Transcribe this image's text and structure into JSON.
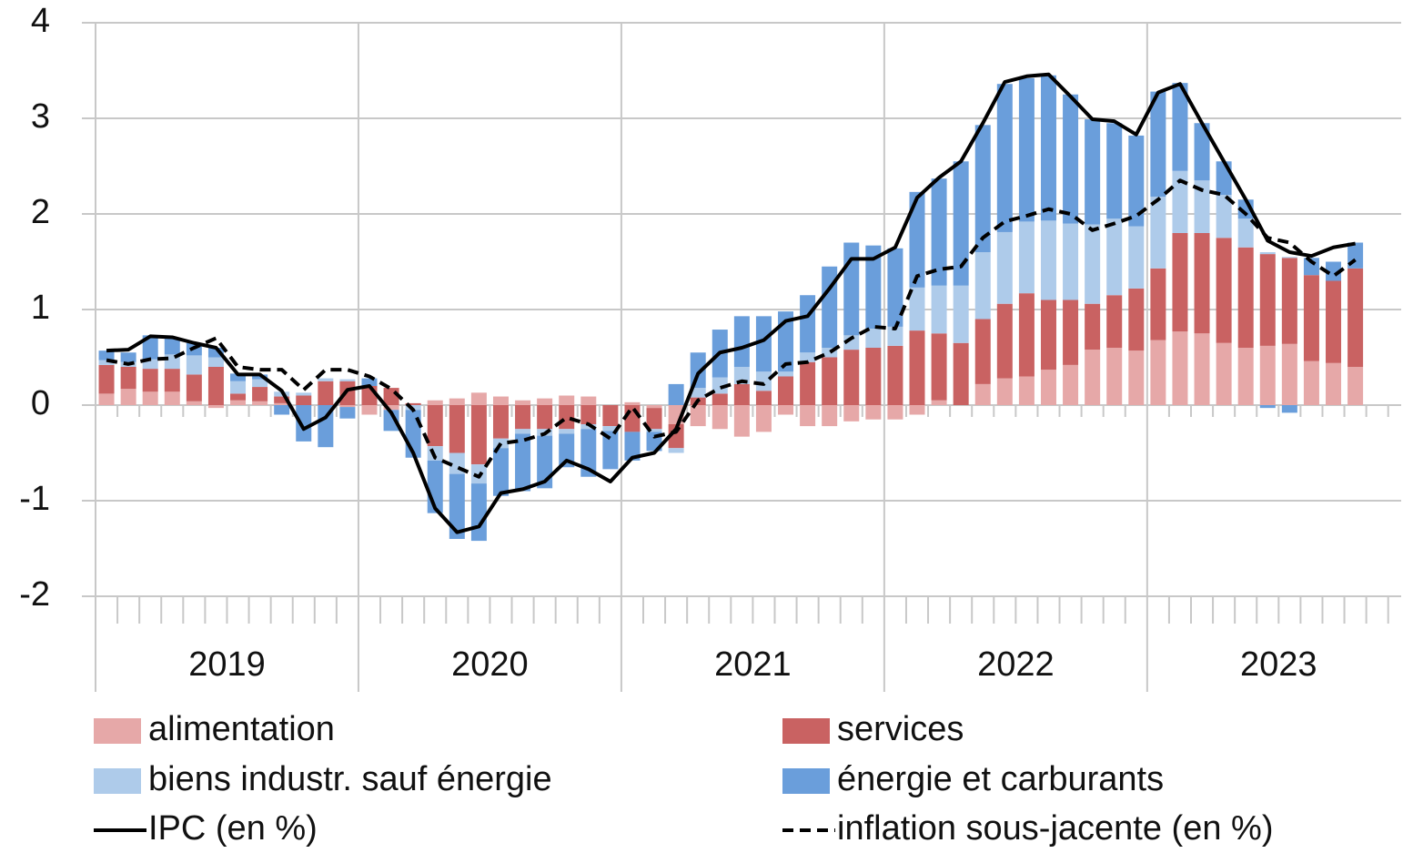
{
  "chart_data": {
    "type": "bar",
    "categories": [
      null,
      null,
      null,
      null,
      null,
      null,
      null,
      null,
      null,
      null,
      null,
      null,
      null,
      null,
      null,
      null,
      null,
      null,
      null,
      null,
      null,
      null,
      null,
      null,
      null,
      null,
      null,
      null,
      null,
      null,
      null,
      null,
      null,
      null,
      null,
      null,
      null,
      null,
      null,
      null,
      null,
      null,
      null,
      null,
      null,
      null,
      null,
      null,
      null,
      null,
      null,
      null,
      null,
      null,
      null,
      null,
      null,
      null
    ],
    "years": [
      "2019",
      "2020",
      "2021",
      "2022",
      "2023"
    ],
    "ylim": [
      -2,
      4
    ],
    "yticks": [
      -2,
      -1,
      0,
      1,
      2,
      3,
      4
    ],
    "grid": true,
    "series": [
      {
        "name": "alimentation",
        "color": "#e6a8a8",
        "kind": "bar",
        "values": [
          0.12,
          0.17,
          0.14,
          0.14,
          0.04,
          -0.03,
          0.05,
          0.04,
          0.02,
          0.0,
          0.0,
          -0.02,
          -0.1,
          -0.05,
          0.0,
          0.05,
          0.07,
          0.13,
          0.09,
          0.05,
          0.07,
          0.1,
          0.09,
          0.0,
          0.03,
          -0.03,
          -0.2,
          -0.22,
          -0.25,
          -0.33,
          -0.28,
          -0.1,
          -0.22,
          -0.22,
          -0.17,
          -0.15,
          -0.15,
          -0.1,
          0.05,
          0.0,
          0.22,
          0.28,
          0.3,
          0.37,
          0.42,
          0.58,
          0.6,
          0.57,
          0.68,
          0.77,
          0.75,
          0.65,
          0.6,
          0.62,
          0.64,
          0.46,
          0.44,
          0.4
        ]
      },
      {
        "name": "services",
        "color": "#c96262",
        "kind": "bar",
        "values": [
          0.3,
          0.23,
          0.24,
          0.24,
          0.28,
          0.4,
          0.07,
          0.15,
          0.07,
          0.1,
          0.25,
          0.25,
          0.2,
          0.18,
          0.02,
          -0.43,
          -0.5,
          -0.62,
          -0.35,
          -0.25,
          -0.25,
          -0.25,
          -0.2,
          -0.22,
          -0.28,
          -0.22,
          -0.25,
          0.08,
          0.12,
          0.22,
          0.15,
          0.3,
          0.45,
          0.5,
          0.58,
          0.6,
          0.62,
          0.78,
          0.7,
          0.65,
          0.68,
          0.78,
          0.87,
          0.73,
          0.68,
          0.48,
          0.55,
          0.65,
          0.75,
          1.03,
          1.05,
          1.1,
          1.05,
          0.96,
          0.9,
          0.9,
          0.86,
          1.03
        ]
      },
      {
        "name": "biens industr. sauf énergie",
        "color": "#aecbea",
        "kind": "bar",
        "values": [
          0.05,
          0.05,
          0.1,
          0.15,
          0.2,
          0.1,
          0.13,
          0.08,
          0.05,
          0.03,
          0.03,
          0.02,
          0.0,
          0.0,
          -0.05,
          -0.15,
          -0.22,
          -0.2,
          -0.1,
          -0.05,
          -0.07,
          -0.05,
          -0.05,
          -0.05,
          0.0,
          -0.03,
          -0.05,
          0.1,
          0.17,
          0.18,
          0.2,
          0.05,
          0.1,
          0.1,
          0.15,
          0.2,
          0.2,
          0.45,
          0.5,
          0.6,
          0.7,
          0.75,
          0.75,
          0.83,
          0.8,
          0.83,
          0.8,
          0.65,
          0.75,
          0.65,
          0.55,
          0.45,
          0.3,
          0.02,
          0.01,
          0.0,
          0.0,
          0.0
        ]
      },
      {
        "name": "énergie et carburants",
        "color": "#6a9edb",
        "kind": "bar",
        "values": [
          0.1,
          0.1,
          0.25,
          0.17,
          0.13,
          0.1,
          0.08,
          0.05,
          -0.1,
          -0.38,
          -0.44,
          -0.12,
          0.08,
          -0.22,
          -0.5,
          -0.55,
          -0.68,
          -0.6,
          -0.5,
          -0.6,
          -0.55,
          -0.35,
          -0.5,
          -0.4,
          -0.3,
          -0.2,
          0.22,
          0.37,
          0.5,
          0.53,
          0.58,
          0.63,
          0.6,
          0.85,
          0.97,
          0.87,
          0.82,
          1.0,
          1.12,
          1.3,
          1.33,
          1.55,
          1.5,
          1.52,
          1.35,
          1.1,
          1.0,
          0.95,
          1.1,
          0.92,
          0.6,
          0.35,
          0.2,
          -0.03,
          -0.08,
          0.18,
          0.2,
          0.27
        ]
      },
      {
        "name": "IPC (en %)",
        "color": "#000000",
        "kind": "line",
        "dashed": false,
        "values": [
          0.57,
          0.58,
          0.72,
          0.71,
          0.65,
          0.6,
          0.32,
          0.32,
          0.15,
          -0.25,
          -0.13,
          0.16,
          0.2,
          -0.08,
          -0.5,
          -1.08,
          -1.33,
          -1.27,
          -0.92,
          -0.88,
          -0.8,
          -0.58,
          -0.67,
          -0.8,
          -0.55,
          -0.5,
          -0.25,
          0.33,
          0.55,
          0.6,
          0.68,
          0.88,
          0.93,
          1.22,
          1.53,
          1.53,
          1.65,
          2.17,
          2.38,
          2.55,
          2.95,
          3.38,
          3.44,
          3.46,
          3.23,
          2.99,
          2.97,
          2.83,
          3.27,
          3.36,
          2.95,
          2.55,
          2.15,
          1.72,
          1.6,
          1.56,
          1.65,
          1.69
        ]
      },
      {
        "name": "inflation sous-jacente (en %)",
        "color": "#000000",
        "kind": "line",
        "dashed": true,
        "values": [
          0.47,
          0.43,
          0.48,
          0.49,
          0.6,
          0.7,
          0.4,
          0.37,
          0.37,
          0.16,
          0.37,
          0.37,
          0.3,
          0.17,
          -0.05,
          -0.55,
          -0.65,
          -0.75,
          -0.4,
          -0.37,
          -0.3,
          -0.13,
          -0.2,
          -0.35,
          -0.02,
          -0.33,
          -0.28,
          0.05,
          0.18,
          0.25,
          0.22,
          0.43,
          0.45,
          0.55,
          0.7,
          0.82,
          0.8,
          1.35,
          1.42,
          1.45,
          1.75,
          1.92,
          1.98,
          2.05,
          2.0,
          1.83,
          1.9,
          1.98,
          2.15,
          2.35,
          2.25,
          2.2,
          2.0,
          1.75,
          1.7,
          1.5,
          1.35,
          1.52
        ]
      }
    ]
  }
}
